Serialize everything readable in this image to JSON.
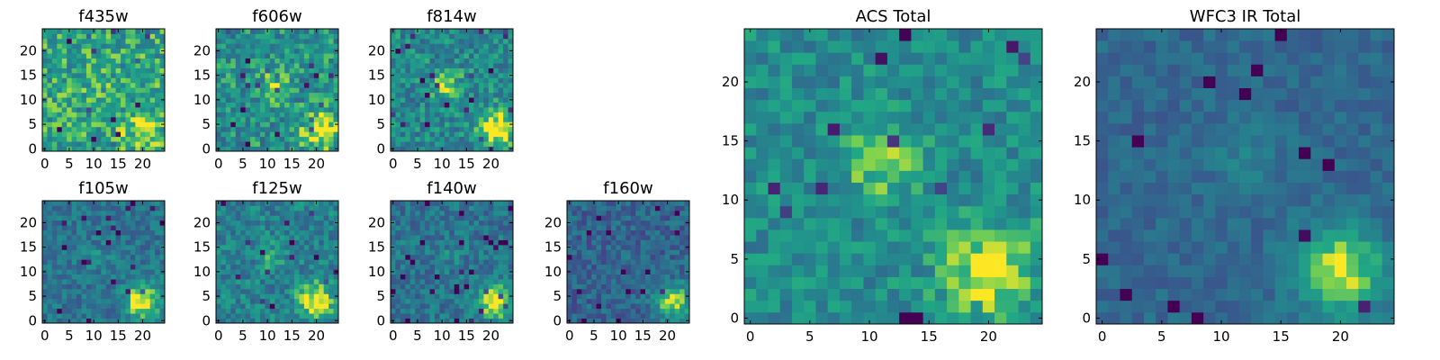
{
  "chart_data": [
    {
      "type": "heatmap",
      "title": "f435w",
      "size": 25,
      "xticks": [
        0,
        5,
        10,
        15,
        20
      ],
      "yticks": [
        0,
        5,
        10,
        15,
        20
      ],
      "xlim": [
        -0.5,
        24.5
      ],
      "ylim": [
        -0.5,
        24.5
      ],
      "colormap": "viridis",
      "bright_spot": [
        20,
        4
      ],
      "bright_strength": 0.25,
      "secondary_spot": [
        11,
        13
      ],
      "secondary_strength": 0.05,
      "base_level": 0.7,
      "noise": 0.22,
      "seed": 11
    },
    {
      "type": "heatmap",
      "title": "f606w",
      "size": 25,
      "xticks": [
        0,
        5,
        10,
        15,
        20
      ],
      "yticks": [
        0,
        5,
        10,
        15,
        20
      ],
      "xlim": [
        -0.5,
        24.5
      ],
      "ylim": [
        -0.5,
        24.5
      ],
      "colormap": "viridis",
      "bright_spot": [
        21,
        4
      ],
      "bright_strength": 0.45,
      "secondary_spot": [
        11,
        13
      ],
      "secondary_strength": 0.3,
      "base_level": 0.62,
      "noise": 0.22,
      "seed": 23
    },
    {
      "type": "heatmap",
      "title": "f814w",
      "size": 25,
      "xticks": [
        0,
        5,
        10,
        15,
        20
      ],
      "yticks": [
        0,
        5,
        10,
        15,
        20
      ],
      "xlim": [
        -0.5,
        24.5
      ],
      "ylim": [
        -0.5,
        24.5
      ],
      "colormap": "viridis",
      "bright_spot": [
        21,
        4
      ],
      "bright_strength": 0.5,
      "secondary_spot": [
        11,
        13
      ],
      "secondary_strength": 0.35,
      "base_level": 0.58,
      "noise": 0.2,
      "seed": 37
    },
    {
      "type": "heatmap",
      "title": "f105w",
      "size": 25,
      "xticks": [
        0,
        5,
        10,
        15,
        20
      ],
      "yticks": [
        0,
        5,
        10,
        15,
        20
      ],
      "xlim": [
        -0.5,
        24.5
      ],
      "ylim": [
        -0.5,
        24.5
      ],
      "colormap": "viridis",
      "bright_spot": [
        20,
        4
      ],
      "bright_strength": 0.55,
      "secondary_spot": [
        11,
        13
      ],
      "secondary_strength": 0.1,
      "base_level": 0.48,
      "noise": 0.15,
      "seed": 41
    },
    {
      "type": "heatmap",
      "title": "f125w",
      "size": 25,
      "xticks": [
        0,
        5,
        10,
        15,
        20
      ],
      "yticks": [
        0,
        5,
        10,
        15,
        20
      ],
      "xlim": [
        -0.5,
        24.5
      ],
      "ylim": [
        -0.5,
        24.5
      ],
      "colormap": "viridis",
      "bright_spot": [
        20,
        4
      ],
      "bright_strength": 0.5,
      "secondary_spot": [
        11,
        13
      ],
      "secondary_strength": 0.15,
      "base_level": 0.55,
      "noise": 0.18,
      "seed": 53
    },
    {
      "type": "heatmap",
      "title": "f140w",
      "size": 25,
      "xticks": [
        0,
        5,
        10,
        15,
        20
      ],
      "yticks": [
        0,
        5,
        10,
        15,
        20
      ],
      "xlim": [
        -0.5,
        24.5
      ],
      "ylim": [
        -0.5,
        24.5
      ],
      "colormap": "viridis",
      "bright_spot": [
        21,
        4
      ],
      "bright_strength": 0.55,
      "secondary_spot": [
        11,
        13
      ],
      "secondary_strength": 0.1,
      "base_level": 0.48,
      "noise": 0.16,
      "seed": 67
    },
    {
      "type": "heatmap",
      "title": "f160w",
      "size": 25,
      "xticks": [
        0,
        5,
        10,
        15,
        20
      ],
      "yticks": [
        0,
        5,
        10,
        15,
        20
      ],
      "xlim": [
        -0.5,
        24.5
      ],
      "ylim": [
        -0.5,
        24.5
      ],
      "colormap": "viridis",
      "bright_spot": [
        21,
        4
      ],
      "bright_strength": 0.55,
      "secondary_spot": [
        11,
        13
      ],
      "secondary_strength": 0.05,
      "base_level": 0.4,
      "noise": 0.16,
      "seed": 79
    },
    {
      "type": "heatmap",
      "title": "ACS Total",
      "size": 25,
      "xticks": [
        0,
        5,
        10,
        15,
        20
      ],
      "yticks": [
        0,
        5,
        10,
        15,
        20
      ],
      "xlim": [
        -0.5,
        24.5
      ],
      "ylim": [
        -0.5,
        24.5
      ],
      "colormap": "viridis",
      "bright_spot": [
        20,
        4
      ],
      "bright_strength": 0.4,
      "secondary_spot": [
        11,
        13
      ],
      "secondary_strength": 0.3,
      "base_level": 0.6,
      "noise": 0.16,
      "seed": 97
    },
    {
      "type": "heatmap",
      "title": "WFC3 IR Total",
      "size": 25,
      "xticks": [
        0,
        5,
        10,
        15,
        20
      ],
      "yticks": [
        0,
        5,
        10,
        15,
        20
      ],
      "xlim": [
        -0.5,
        24.5
      ],
      "ylim": [
        -0.5,
        24.5
      ],
      "colormap": "viridis",
      "bright_spot": [
        20,
        4
      ],
      "bright_strength": 0.55,
      "secondary_spot": [
        12,
        13
      ],
      "secondary_strength": 0.15,
      "base_level": 0.42,
      "noise": 0.09,
      "seed": 113
    }
  ]
}
